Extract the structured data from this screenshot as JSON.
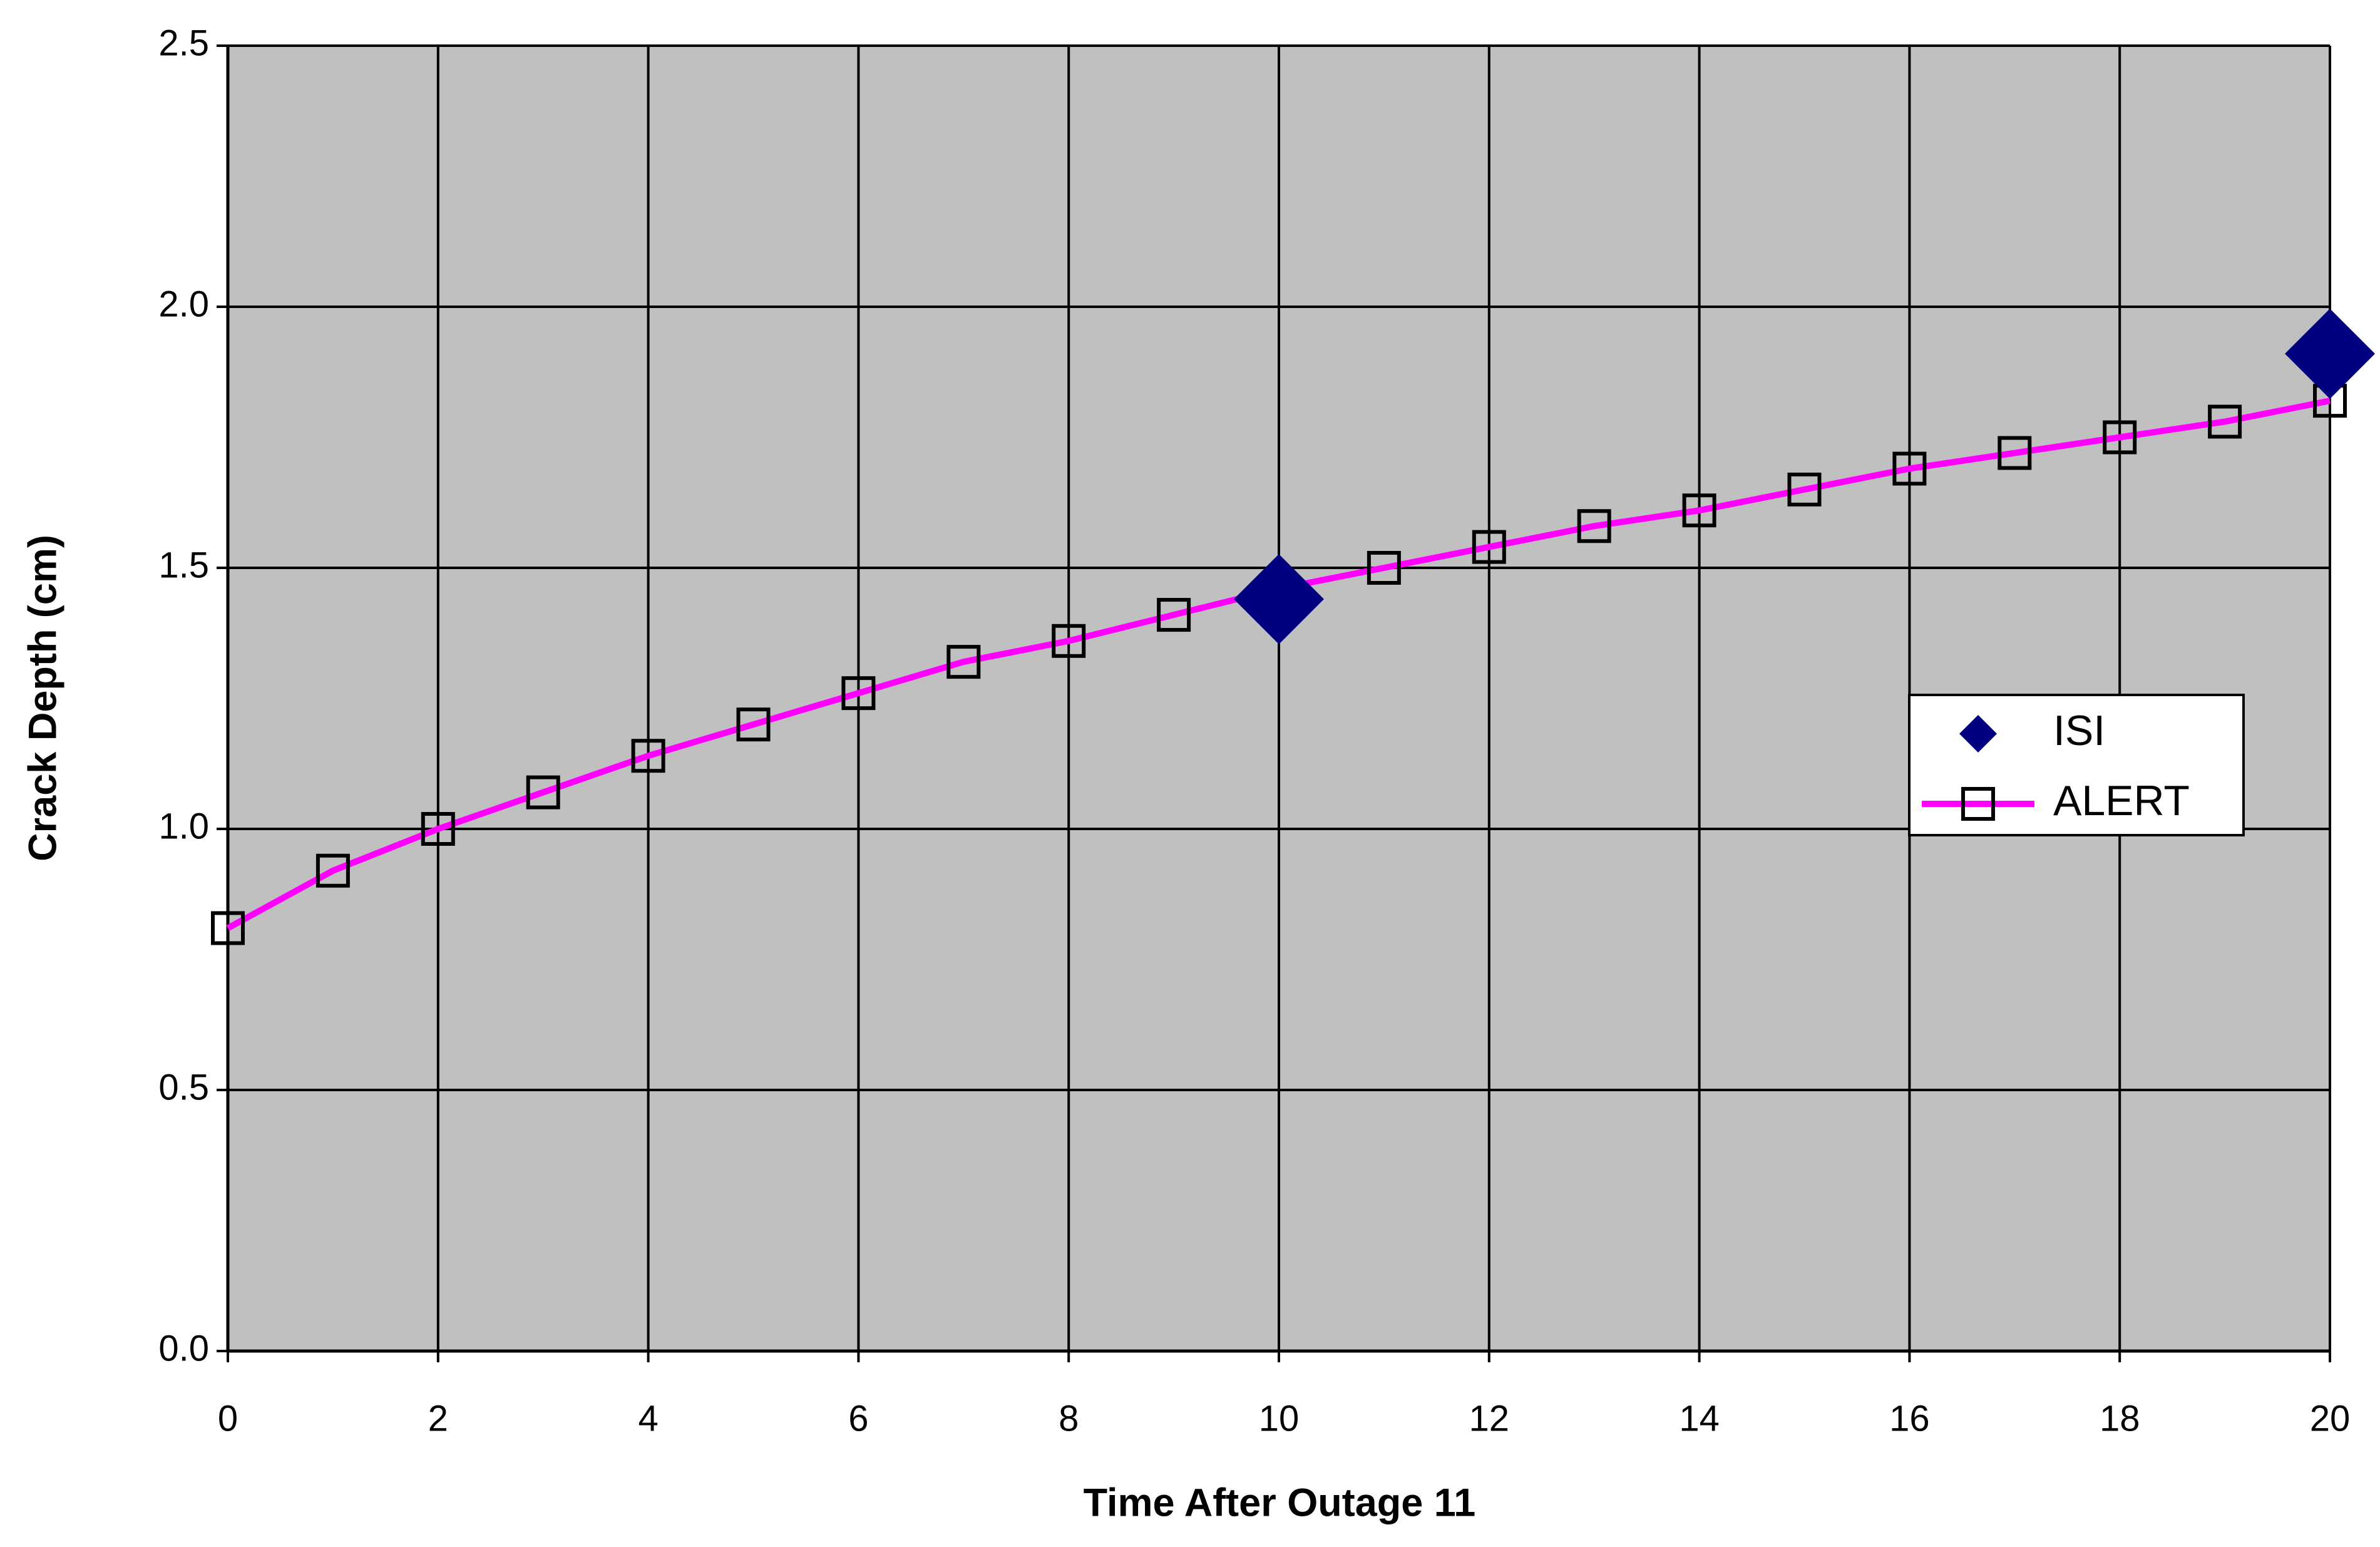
{
  "chart_data": {
    "type": "scatter",
    "xlabel": "Time After Outage 11",
    "ylabel": "Crack Depth (cm)",
    "xlim": [
      0,
      20
    ],
    "xticks": [
      0,
      2,
      4,
      6,
      8,
      10,
      12,
      14,
      16,
      18,
      20
    ],
    "ylim": [
      0,
      2.5
    ],
    "yticks": [
      {
        "value": 0,
        "label": "0.0"
      },
      0.5,
      {
        "value": 1,
        "label": "1.0"
      },
      1.5,
      {
        "value": 2,
        "label": "2.0"
      },
      2.5
    ],
    "grid": true,
    "plot_background": "#c0c0c0",
    "legend": "right",
    "series": [
      {
        "name": "ISI",
        "color": "#000080",
        "marker": "diamond",
        "line": false,
        "x": [
          10,
          20
        ],
        "values": [
          1.44,
          1.91
        ]
      },
      {
        "name": "ALERT",
        "color": "#ff00ff",
        "marker": "square",
        "marker_color": "#000000",
        "line": true,
        "x": [
          0,
          1,
          2,
          3,
          4,
          5,
          6,
          7,
          8,
          9,
          10,
          11,
          12,
          13,
          14,
          15,
          16,
          17,
          18,
          19,
          20
        ],
        "values": [
          0.81,
          0.92,
          1.0,
          1.07,
          1.14,
          1.2,
          1.26,
          1.32,
          1.36,
          1.41,
          1.46,
          1.5,
          1.54,
          1.58,
          1.61,
          1.65,
          1.69,
          1.72,
          1.75,
          1.78,
          1.82
        ]
      }
    ]
  }
}
